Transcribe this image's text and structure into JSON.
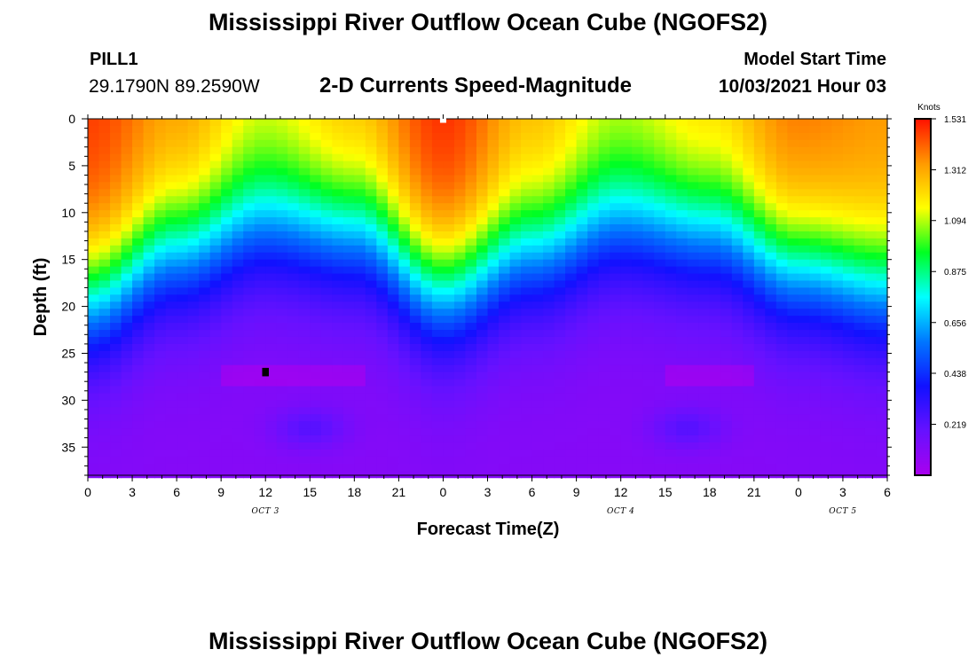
{
  "header": {
    "title": "Mississippi River Outflow Ocean Cube (NGOFS2)",
    "station_id": "PILL1",
    "station_coords": "29.1790N  89.2590W",
    "subtitle": "2-D Currents Speed-Magnitude",
    "model_start_label": "Model Start Time",
    "model_start_time": "10/03/2021 Hour 03"
  },
  "footer": {
    "title": "Mississippi River Outflow Ocean Cube (NGOFS2)"
  },
  "chart_data": {
    "type": "heatmap",
    "title": "2-D Currents Speed-Magnitude",
    "xlabel": "Forecast Time(Z)",
    "ylabel": "Depth (ft)",
    "x_tick_labels": [
      "0",
      "3",
      "6",
      "9",
      "12",
      "15",
      "18",
      "21",
      "0",
      "3",
      "6",
      "9",
      "12",
      "15",
      "18",
      "21",
      "0",
      "3",
      "6"
    ],
    "x_range_hours": [
      0,
      54
    ],
    "date_labels": [
      {
        "text": "OCT 3",
        "hour": 12
      },
      {
        "text": "OCT 4",
        "hour": 36
      },
      {
        "text": "OCT 5",
        "hour": 51
      }
    ],
    "y_tick_labels": [
      "0",
      "5",
      "10",
      "15",
      "20",
      "25",
      "30",
      "35"
    ],
    "y_tick_values": [
      0,
      5,
      10,
      15,
      20,
      25,
      30,
      35
    ],
    "ylim": [
      0,
      38
    ],
    "y_inverted": true,
    "colorbar": {
      "title": "Knots",
      "tick_labels": [
        "1.531",
        "1.312",
        "1.094",
        "0.875",
        "0.656",
        "0.438",
        "0.219"
      ],
      "tick_values": [
        1.531,
        1.312,
        1.094,
        0.875,
        0.656,
        0.438,
        0.219
      ],
      "range": [
        0,
        1.531
      ],
      "colors": [
        "#aa00ee",
        "#6611ff",
        "#1111ff",
        "#0077ff",
        "#00ffff",
        "#00ff22",
        "#ffff00",
        "#ff9900",
        "#ff1100"
      ]
    },
    "speed_field": {
      "description": "approximate speed (knots) vs forecast hour and depth (ft)",
      "surface_speed_by_hour": [
        [
          0,
          1.48
        ],
        [
          6,
          1.35
        ],
        [
          12,
          1.18
        ],
        [
          18,
          1.3
        ],
        [
          24,
          1.5
        ],
        [
          30,
          1.3
        ],
        [
          36,
          1.15
        ],
        [
          42,
          1.25
        ],
        [
          48,
          1.4
        ],
        [
          54,
          1.35
        ]
      ],
      "mid_band_depth_ft_by_hour": [
        [
          0,
          19
        ],
        [
          6,
          14
        ],
        [
          12,
          11
        ],
        [
          18,
          12
        ],
        [
          24,
          18
        ],
        [
          30,
          14
        ],
        [
          36,
          11
        ],
        [
          42,
          12
        ],
        [
          48,
          16
        ],
        [
          54,
          18
        ]
      ],
      "bottom_speed_knots": 0.1
    },
    "markers": [
      {
        "hour": 12,
        "depth_ft": 27,
        "color": "#000000"
      },
      {
        "hour": 24,
        "depth_ft": 0,
        "color": "#ffffff"
      }
    ]
  }
}
